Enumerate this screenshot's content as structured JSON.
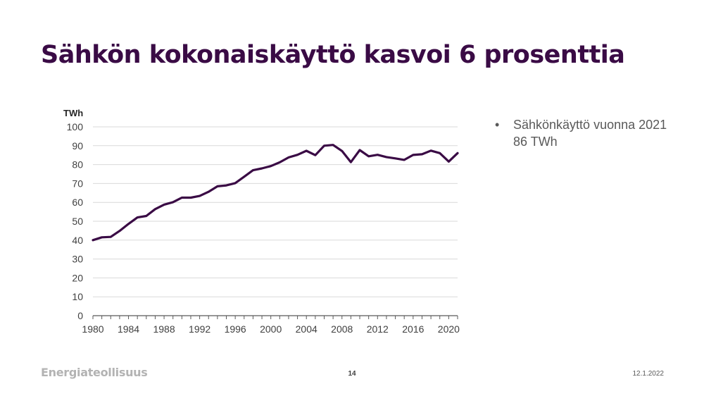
{
  "slide": {
    "title": "Sähkön kokonaiskäyttö kasvoi 6 prosenttia",
    "bullet_symbol": "•",
    "bullet_line1": "Sähkönkäyttö vuonna 2021",
    "bullet_line2": "86 TWh",
    "footer_logo": "Energiateollisuus",
    "page_number": "14",
    "date": "12.1.2022"
  },
  "chart_data": {
    "type": "line",
    "title": "",
    "xlabel": "",
    "ylabel": "TWh",
    "xlim": [
      1980,
      2021
    ],
    "ylim": [
      0,
      100
    ],
    "y_ticks": [
      0,
      10,
      20,
      30,
      40,
      50,
      60,
      70,
      80,
      90,
      100
    ],
    "x_ticks": [
      1980,
      1984,
      1988,
      1992,
      1996,
      2000,
      2004,
      2008,
      2012,
      2016,
      2020
    ],
    "grid": "horizontal",
    "legend": "none",
    "line_color": "#3a0b45",
    "series": [
      {
        "x": [
          1980,
          1981,
          1982,
          1983,
          1984,
          1985,
          1986,
          1987,
          1988,
          1989,
          1990,
          1991,
          1992,
          1993,
          1994,
          1995,
          1996,
          1997,
          1998,
          1999,
          2000,
          2001,
          2002,
          2003,
          2004,
          2005,
          2006,
          2007,
          2008,
          2009,
          2010,
          2011,
          2012,
          2013,
          2014,
          2015,
          2016,
          2017,
          2018,
          2019,
          2020,
          2021
        ],
        "values": [
          40.0,
          41.5,
          41.7,
          44.9,
          48.6,
          52.0,
          52.8,
          56.4,
          58.8,
          60.1,
          62.5,
          62.5,
          63.4,
          65.6,
          68.5,
          69.0,
          70.2,
          73.6,
          77.0,
          78.0,
          79.2,
          81.2,
          83.8,
          85.2,
          87.3,
          85.0,
          90.0,
          90.4,
          87.2,
          81.3,
          87.7,
          84.4,
          85.2,
          84.0,
          83.3,
          82.5,
          85.1,
          85.5,
          87.4,
          86.1,
          81.6,
          86.1
        ]
      }
    ]
  }
}
